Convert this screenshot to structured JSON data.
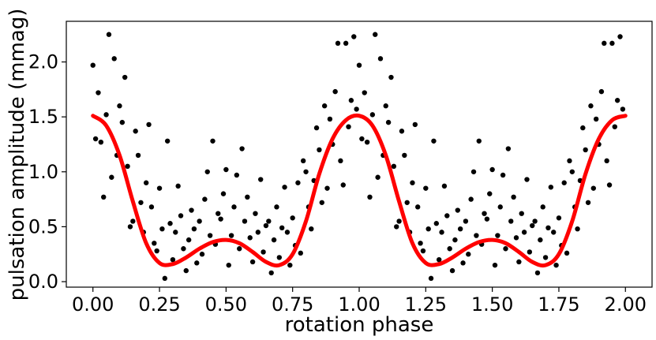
{
  "chart_data": {
    "type": "scatter",
    "xlabel": "rotation phase",
    "ylabel": "pulsation amplitude (mmag)",
    "xlim": [
      -0.1,
      2.1
    ],
    "ylim": [
      -0.05,
      2.37
    ],
    "xticks": [
      "0.00",
      "0.25",
      "0.50",
      "0.75",
      "1.00",
      "1.25",
      "1.50",
      "1.75",
      "2.00"
    ],
    "yticks": [
      "0.0",
      "0.5",
      "1.0",
      "1.5",
      "2.0"
    ],
    "grid": false,
    "colors": {
      "points": "#000000",
      "model": "#ff0000"
    },
    "series": [
      {
        "kind": "points",
        "x": [
          0.0,
          0.01,
          0.02,
          0.03,
          0.04,
          0.05,
          0.06,
          0.07,
          0.08,
          0.09,
          0.1,
          0.11,
          0.12,
          0.13,
          0.14,
          0.15,
          0.16,
          0.17,
          0.18,
          0.19,
          0.2,
          0.21,
          0.22,
          0.23,
          0.24,
          0.25,
          0.26,
          0.27,
          0.28,
          0.29,
          0.3,
          0.31,
          0.32,
          0.33,
          0.34,
          0.35,
          0.36,
          0.37,
          0.38,
          0.39,
          0.4,
          0.41,
          0.42,
          0.43,
          0.44,
          0.45,
          0.46,
          0.47,
          0.48,
          0.49,
          0.5,
          0.51,
          0.52,
          0.53,
          0.54,
          0.55,
          0.56,
          0.57,
          0.58,
          0.59,
          0.6,
          0.61,
          0.62,
          0.63,
          0.64,
          0.65,
          0.66,
          0.67,
          0.68,
          0.69,
          0.7,
          0.71,
          0.72,
          0.73,
          0.74,
          0.75,
          0.76,
          0.77,
          0.78,
          0.79,
          0.8,
          0.81,
          0.82,
          0.83,
          0.84,
          0.85,
          0.86,
          0.87,
          0.88,
          0.89,
          0.9,
          0.91,
          0.92,
          0.93,
          0.94,
          0.95,
          0.96,
          0.97,
          0.98,
          0.99
        ],
        "y": [
          1.97,
          1.3,
          1.72,
          1.27,
          0.77,
          1.52,
          2.25,
          0.95,
          2.03,
          1.15,
          1.6,
          1.45,
          1.86,
          1.05,
          0.5,
          0.55,
          1.37,
          1.15,
          0.72,
          0.45,
          0.9,
          1.43,
          0.68,
          0.35,
          0.28,
          0.85,
          0.48,
          0.03,
          1.28,
          0.53,
          0.2,
          0.45,
          0.87,
          0.6,
          0.3,
          0.1,
          0.38,
          0.65,
          0.48,
          0.17,
          0.55,
          0.25,
          0.75,
          1.0,
          0.42,
          1.28,
          0.34,
          0.62,
          0.57,
          0.8,
          1.02,
          0.15,
          0.42,
          0.68,
          0.97,
          0.3,
          1.21,
          0.55,
          0.77,
          0.4,
          0.18,
          0.62,
          0.45,
          0.93,
          0.27,
          0.51,
          0.55,
          0.08,
          0.38,
          0.68,
          0.22,
          0.49,
          0.86,
          0.45,
          0.15,
          0.58,
          0.33,
          0.9,
          0.26,
          1.1,
          1.0,
          0.68,
          0.48,
          0.92,
          1.4,
          1.2,
          0.72,
          1.6,
          0.85,
          1.48,
          1.25,
          1.73,
          2.17,
          1.1,
          0.88,
          2.17,
          1.41,
          1.65,
          2.23,
          1.57
        ]
      },
      {
        "kind": "points",
        "x": [
          1.0,
          1.01,
          1.02,
          1.03,
          1.04,
          1.05,
          1.06,
          1.07,
          1.08,
          1.09,
          1.1,
          1.11,
          1.12,
          1.13,
          1.14,
          1.15,
          1.16,
          1.17,
          1.18,
          1.19,
          1.2,
          1.21,
          1.22,
          1.23,
          1.24,
          1.25,
          1.26,
          1.27,
          1.28,
          1.29,
          1.3,
          1.31,
          1.32,
          1.33,
          1.34,
          1.35,
          1.36,
          1.37,
          1.38,
          1.39,
          1.4,
          1.41,
          1.42,
          1.43,
          1.44,
          1.45,
          1.46,
          1.47,
          1.48,
          1.49,
          1.5,
          1.51,
          1.52,
          1.53,
          1.54,
          1.55,
          1.56,
          1.57,
          1.58,
          1.59,
          1.6,
          1.61,
          1.62,
          1.63,
          1.64,
          1.65,
          1.66,
          1.67,
          1.68,
          1.69,
          1.7,
          1.71,
          1.72,
          1.73,
          1.74,
          1.75,
          1.76,
          1.77,
          1.78,
          1.79,
          1.8,
          1.81,
          1.82,
          1.83,
          1.84,
          1.85,
          1.86,
          1.87,
          1.88,
          1.89,
          1.9,
          1.91,
          1.92,
          1.93,
          1.94,
          1.95,
          1.96,
          1.97,
          1.98,
          1.99
        ],
        "y": [
          1.97,
          1.3,
          1.72,
          1.27,
          0.77,
          1.52,
          2.25,
          0.95,
          2.03,
          1.15,
          1.6,
          1.45,
          1.86,
          1.05,
          0.5,
          0.55,
          1.37,
          1.15,
          0.72,
          0.45,
          0.9,
          1.43,
          0.68,
          0.35,
          0.28,
          0.85,
          0.48,
          0.03,
          1.28,
          0.53,
          0.2,
          0.45,
          0.87,
          0.6,
          0.3,
          0.1,
          0.38,
          0.65,
          0.48,
          0.17,
          0.55,
          0.25,
          0.75,
          1.0,
          0.42,
          1.28,
          0.34,
          0.62,
          0.57,
          0.8,
          1.02,
          0.15,
          0.42,
          0.68,
          0.97,
          0.3,
          1.21,
          0.55,
          0.77,
          0.4,
          0.18,
          0.62,
          0.45,
          0.93,
          0.27,
          0.51,
          0.55,
          0.08,
          0.38,
          0.68,
          0.22,
          0.49,
          0.86,
          0.45,
          0.15,
          0.58,
          0.33,
          0.9,
          0.26,
          1.1,
          1.0,
          0.68,
          0.48,
          0.92,
          1.4,
          1.2,
          0.72,
          1.6,
          0.85,
          1.48,
          1.25,
          1.73,
          2.17,
          1.1,
          0.88,
          2.17,
          1.41,
          1.65,
          2.23,
          1.57
        ]
      },
      {
        "kind": "model",
        "x": [
          0.0,
          0.05,
          0.1,
          0.15,
          0.2,
          0.25,
          0.3,
          0.35,
          0.4,
          0.45,
          0.5,
          0.55,
          0.6,
          0.65,
          0.7,
          0.75,
          0.8,
          0.85,
          0.9,
          0.95,
          1.0,
          1.05,
          1.1,
          1.15,
          1.2,
          1.25,
          1.3,
          1.35,
          1.4,
          1.45,
          1.5,
          1.55,
          1.6,
          1.65,
          1.7,
          1.75,
          1.8,
          1.85,
          1.9,
          1.95,
          2.0
        ],
        "y": [
          1.51,
          1.42,
          1.15,
          0.73,
          0.35,
          0.17,
          0.16,
          0.22,
          0.3,
          0.36,
          0.38,
          0.35,
          0.27,
          0.18,
          0.15,
          0.25,
          0.55,
          0.98,
          1.3,
          1.47,
          1.51,
          1.42,
          1.15,
          0.73,
          0.35,
          0.17,
          0.16,
          0.22,
          0.3,
          0.36,
          0.38,
          0.35,
          0.27,
          0.18,
          0.15,
          0.25,
          0.55,
          0.98,
          1.3,
          1.47,
          1.51
        ]
      }
    ]
  }
}
